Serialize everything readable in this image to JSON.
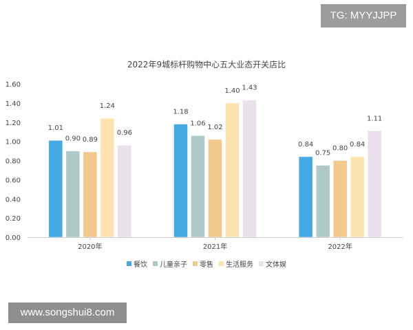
{
  "badge": {
    "text": "TG: MYYJJPP"
  },
  "watermark": {
    "text": "www.songshui8.com"
  },
  "colors": {
    "餐饮": "#45A9E3",
    "儿童亲子": "#AFC9C8",
    "零售": "#F2C98C",
    "生活服务": "#FDE3B0",
    "文体娱": "#EAE0EC",
    "axis": "#cccccc",
    "text": "#444444"
  },
  "chart_data": {
    "type": "bar",
    "title": "2022年9城标杆购物中心五大业态开关店比",
    "categories": [
      "2020年",
      "2021年",
      "2022年"
    ],
    "series": [
      {
        "name": "餐饮",
        "values": [
          1.01,
          1.18,
          0.84
        ],
        "labels": [
          "1.01",
          "1.18",
          "0.84"
        ]
      },
      {
        "name": "儿童亲子",
        "values": [
          0.9,
          1.06,
          0.75
        ],
        "labels": [
          "0.90",
          "1.06",
          "0.75"
        ]
      },
      {
        "name": "零售",
        "values": [
          0.89,
          1.02,
          0.8
        ],
        "labels": [
          "0.89",
          "1.02",
          "0.80"
        ]
      },
      {
        "name": "生活服务",
        "values": [
          1.24,
          1.4,
          0.84
        ],
        "labels": [
          "1.24",
          "1.40",
          "0.84"
        ]
      },
      {
        "name": "文体娱",
        "values": [
          0.96,
          1.43,
          1.11
        ],
        "labels": [
          "0.96",
          "1.43",
          "1.11"
        ]
      }
    ],
    "xlabel": "",
    "ylabel": "",
    "ylim": [
      0,
      1.6
    ],
    "yticks": [
      "0.00",
      "0.20",
      "0.40",
      "0.60",
      "0.80",
      "1.00",
      "1.20",
      "1.40",
      "1.60"
    ],
    "grid": false,
    "legend": "bottom"
  }
}
